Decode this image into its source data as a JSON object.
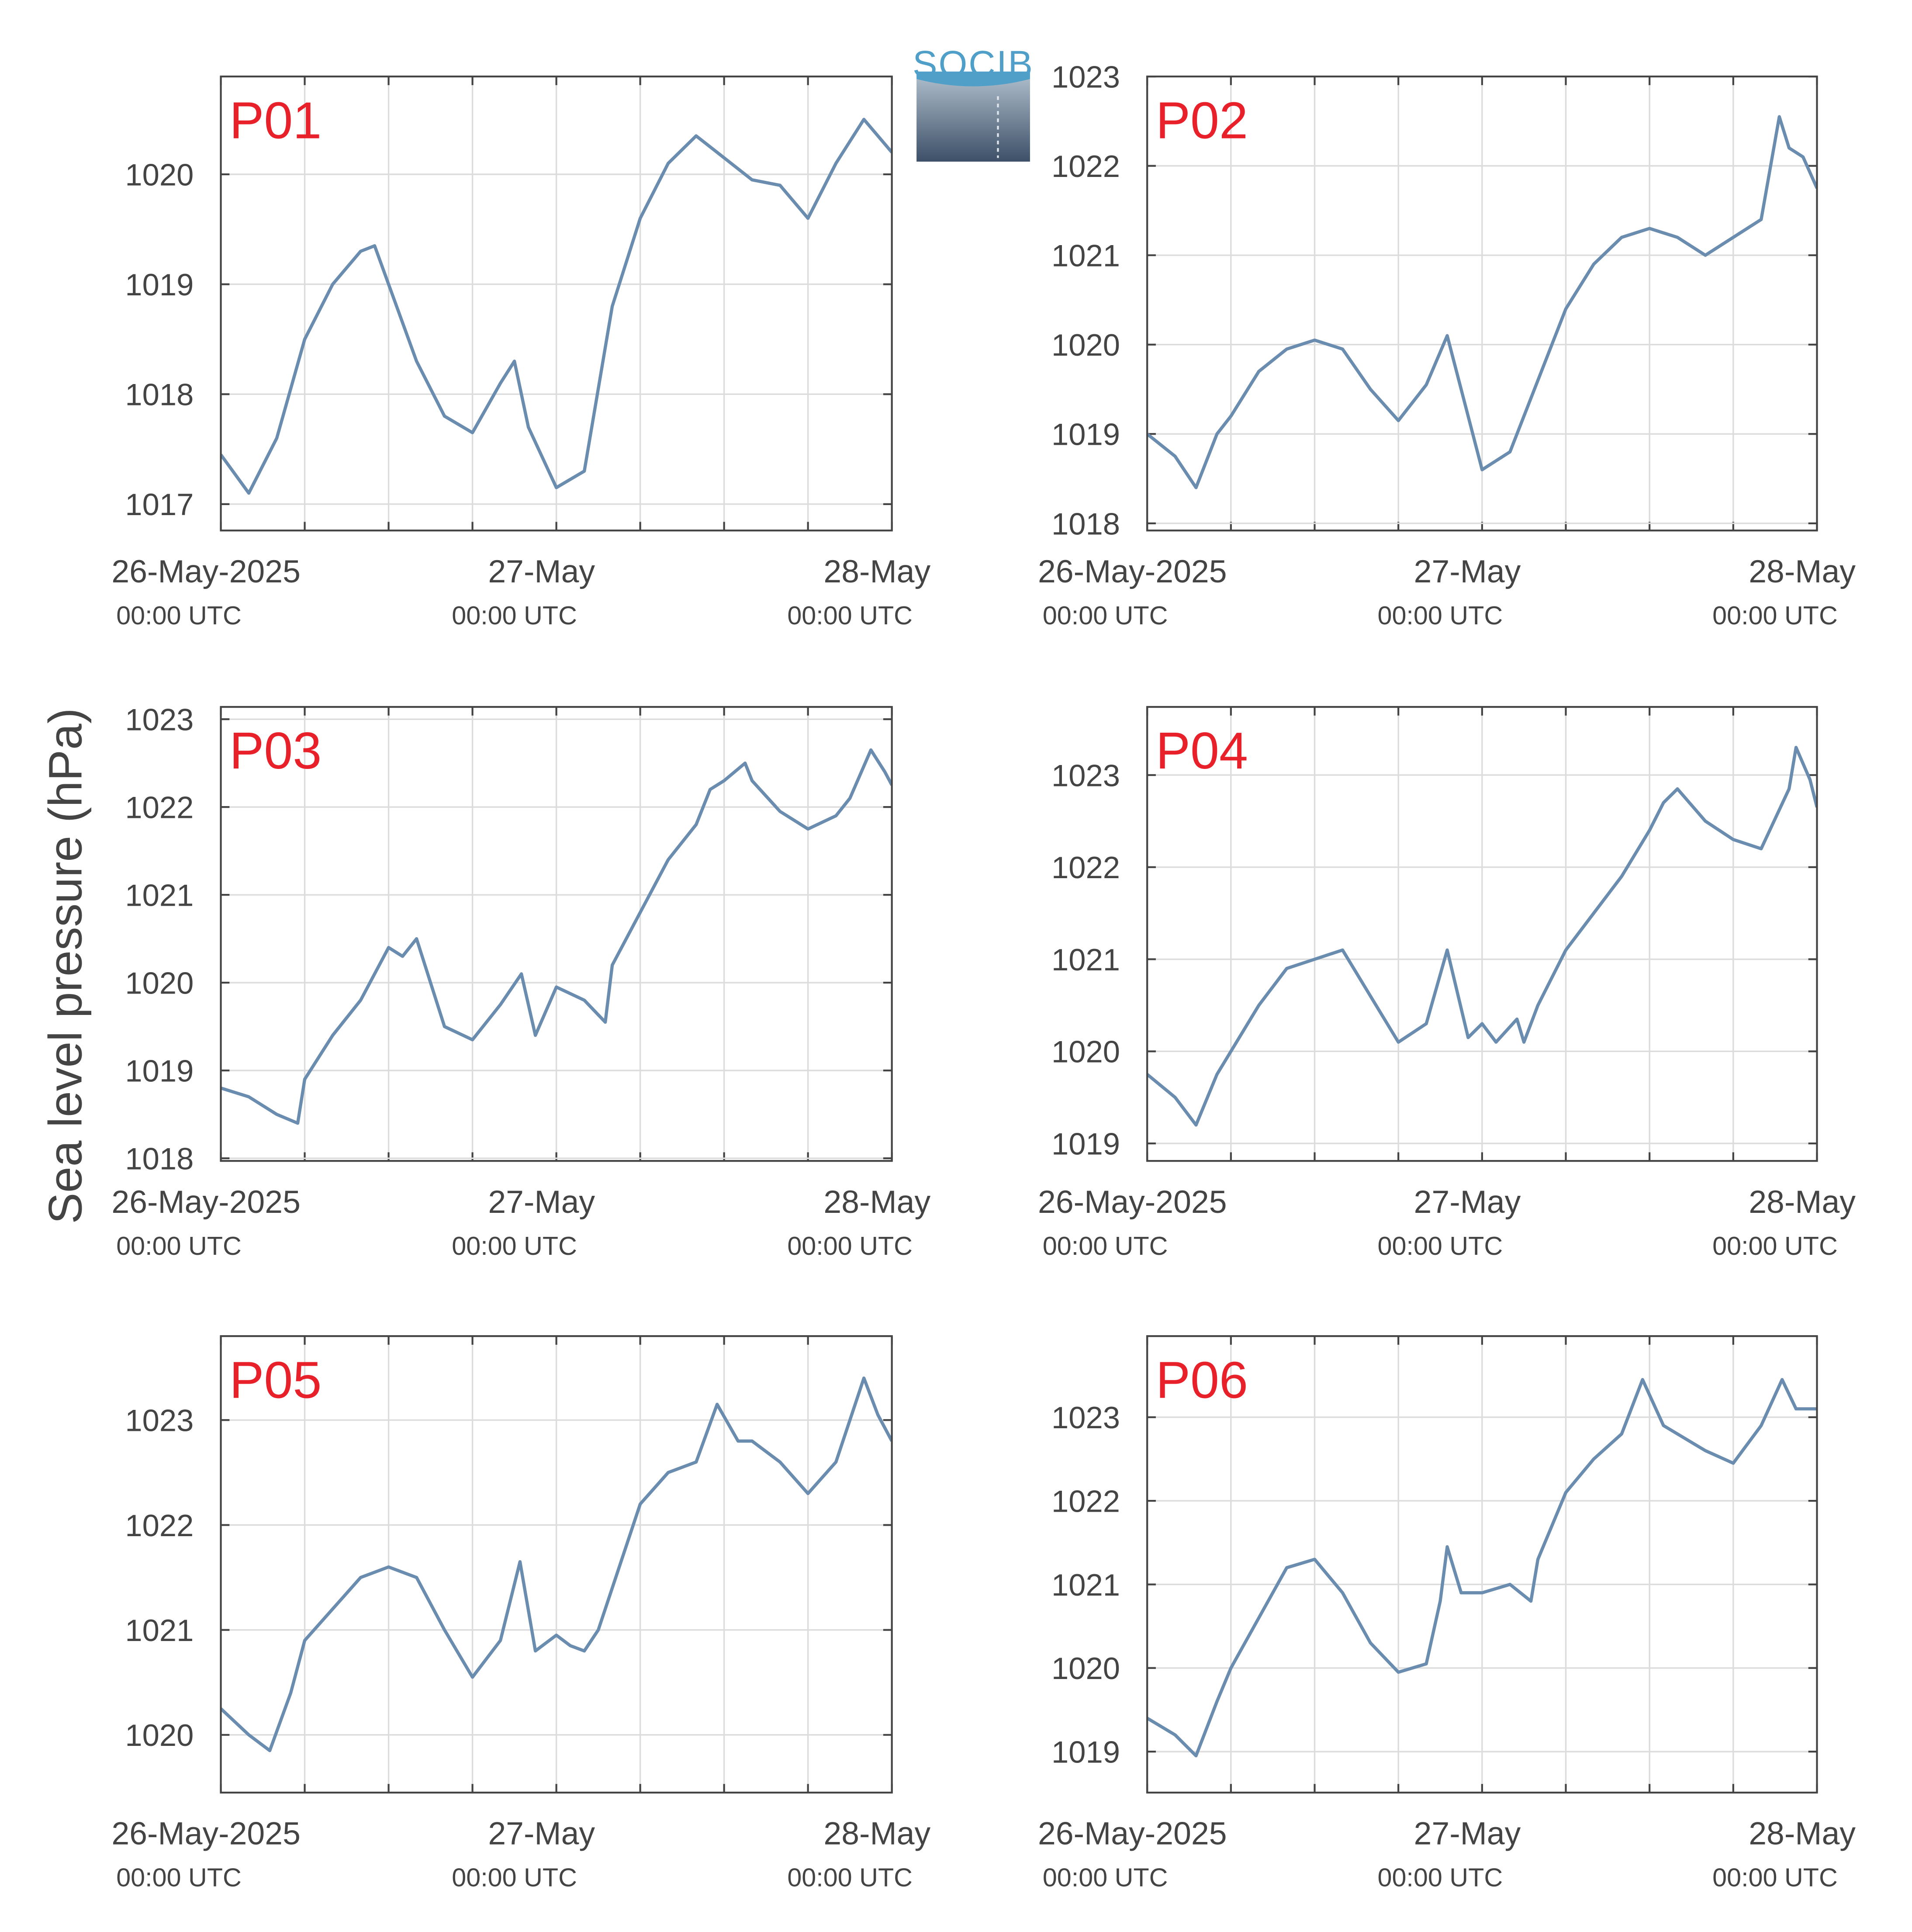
{
  "ylabel": "Sea level pressure (hPa)",
  "logo": "SOCIB",
  "chart_data": [
    {
      "type": "line",
      "title": "P01",
      "color": "#6a8caf",
      "xlim": [
        0,
        48
      ],
      "ylim": [
        1016.76,
        1020.89
      ],
      "yticks": [
        1017,
        1018,
        1019,
        1020
      ],
      "xticks": [
        {
          "value": 0,
          "label": "26-May-2025",
          "sublabel": "00:00 UTC"
        },
        {
          "value": 24,
          "label": "27-May",
          "sublabel": "00:00 UTC"
        },
        {
          "value": 48,
          "label": "28-May",
          "sublabel": "00:00 UTC"
        }
      ],
      "xminor": [
        6,
        12,
        18,
        30,
        36,
        42
      ],
      "x": [
        0,
        2,
        4,
        6,
        8,
        10,
        11,
        12,
        14,
        16,
        18,
        20,
        21,
        22,
        24,
        26,
        28,
        30,
        32,
        34,
        36,
        38,
        40,
        42,
        44,
        46,
        48
      ],
      "values": [
        1017.45,
        1017.1,
        1017.6,
        1018.5,
        1019.0,
        1019.3,
        1019.35,
        1019.0,
        1018.3,
        1017.8,
        1017.65,
        1018.1,
        1018.3,
        1017.7,
        1017.15,
        1017.3,
        1018.8,
        1019.6,
        1020.1,
        1020.35,
        1020.15,
        1019.95,
        1019.9,
        1019.6,
        1020.1,
        1020.5,
        1020.2
      ]
    },
    {
      "type": "line",
      "title": "P02",
      "color": "#6a8caf",
      "xlim": [
        0,
        48
      ],
      "ylim": [
        1017.92,
        1023
      ],
      "yticks": [
        1018,
        1019,
        1020,
        1021,
        1022,
        1023
      ],
      "xticks": [
        {
          "value": 0,
          "label": "26-May-2025",
          "sublabel": "00:00 UTC"
        },
        {
          "value": 24,
          "label": "27-May",
          "sublabel": "00:00 UTC"
        },
        {
          "value": 48,
          "label": "28-May",
          "sublabel": "00:00 UTC"
        }
      ],
      "xminor": [
        6,
        12,
        18,
        30,
        36,
        42
      ],
      "x": [
        0,
        2,
        3.5,
        5,
        6,
        8,
        10,
        12,
        14,
        16,
        18,
        20,
        21.5,
        22.5,
        24,
        26,
        28,
        30,
        32,
        34,
        36,
        38,
        40,
        42,
        44,
        45.3,
        46,
        47,
        48
      ],
      "values": [
        1019.0,
        1018.75,
        1018.4,
        1019.0,
        1019.2,
        1019.7,
        1019.95,
        1020.05,
        1019.95,
        1019.5,
        1019.15,
        1019.55,
        1020.1,
        1019.5,
        1018.6,
        1018.8,
        1019.6,
        1020.4,
        1020.9,
        1021.2,
        1021.3,
        1021.2,
        1021.0,
        1021.2,
        1021.4,
        1022.55,
        1022.2,
        1022.1,
        1021.75
      ]
    },
    {
      "type": "line",
      "title": "P03",
      "color": "#6a8caf",
      "xlim": [
        0,
        48
      ],
      "ylim": [
        1017.97,
        1023.14
      ],
      "yticks": [
        1018,
        1019,
        1020,
        1021,
        1022,
        1023
      ],
      "xticks": [
        {
          "value": 0,
          "label": "26-May-2025",
          "sublabel": "00:00 UTC"
        },
        {
          "value": 24,
          "label": "27-May",
          "sublabel": "00:00 UTC"
        },
        {
          "value": 48,
          "label": "28-May",
          "sublabel": "00:00 UTC"
        }
      ],
      "xminor": [
        6,
        12,
        18,
        30,
        36,
        42
      ],
      "x": [
        0,
        2,
        4,
        5.5,
        6,
        8,
        10,
        12,
        13,
        14,
        16,
        18,
        20,
        21.5,
        22.5,
        24,
        26,
        27.5,
        28,
        30,
        32,
        34,
        35,
        36,
        37.5,
        38,
        40,
        42,
        44,
        45,
        46.5,
        47.5,
        48
      ],
      "values": [
        1018.8,
        1018.7,
        1018.5,
        1018.4,
        1018.9,
        1019.4,
        1019.8,
        1020.4,
        1020.3,
        1020.5,
        1019.5,
        1019.35,
        1019.75,
        1020.1,
        1019.4,
        1019.95,
        1019.8,
        1019.55,
        1020.2,
        1020.8,
        1021.4,
        1021.8,
        1022.2,
        1022.3,
        1022.5,
        1022.3,
        1021.95,
        1021.75,
        1021.9,
        1022.1,
        1022.65,
        1022.4,
        1022.25
      ]
    },
    {
      "type": "line",
      "title": "P04",
      "color": "#6a8caf",
      "xlim": [
        0,
        48
      ],
      "ylim": [
        1018.81,
        1023.74
      ],
      "yticks": [
        1019,
        1020,
        1021,
        1022,
        1023
      ],
      "xticks": [
        {
          "value": 0,
          "label": "26-May-2025",
          "sublabel": "00:00 UTC"
        },
        {
          "value": 24,
          "label": "27-May",
          "sublabel": "00:00 UTC"
        },
        {
          "value": 48,
          "label": "28-May",
          "sublabel": "00:00 UTC"
        }
      ],
      "xminor": [
        6,
        12,
        18,
        30,
        36,
        42
      ],
      "x": [
        0,
        2,
        3.5,
        5,
        6,
        8,
        10,
        12,
        14,
        16,
        18,
        20,
        21.5,
        23,
        24,
        25,
        26.5,
        27,
        28,
        30,
        32,
        34,
        36,
        37,
        38,
        40,
        42,
        44,
        46,
        46.5,
        47.5,
        48
      ],
      "values": [
        1019.75,
        1019.5,
        1019.2,
        1019.75,
        1020.0,
        1020.5,
        1020.9,
        1021.0,
        1021.1,
        1020.6,
        1020.1,
        1020.3,
        1021.1,
        1020.15,
        1020.3,
        1020.1,
        1020.35,
        1020.1,
        1020.5,
        1021.1,
        1021.5,
        1021.9,
        1022.4,
        1022.7,
        1022.85,
        1022.5,
        1022.3,
        1022.2,
        1022.85,
        1023.3,
        1022.95,
        1022.65
      ]
    },
    {
      "type": "line",
      "title": "P05",
      "color": "#6a8caf",
      "xlim": [
        0,
        48
      ],
      "ylim": [
        1019.45,
        1023.8
      ],
      "yticks": [
        1020,
        1021,
        1022,
        1023
      ],
      "xticks": [
        {
          "value": 0,
          "label": "26-May-2025",
          "sublabel": "00:00 UTC"
        },
        {
          "value": 24,
          "label": "27-May",
          "sublabel": "00:00 UTC"
        },
        {
          "value": 48,
          "label": "28-May",
          "sublabel": "00:00 UTC"
        }
      ],
      "xminor": [
        6,
        12,
        18,
        30,
        36,
        42
      ],
      "x": [
        0,
        2,
        3.5,
        5,
        6,
        8,
        10,
        12,
        14,
        16,
        18,
        20,
        21.4,
        22.5,
        24,
        25,
        26,
        27,
        28,
        30,
        32,
        34,
        35.5,
        37,
        38,
        40,
        42,
        44,
        46,
        47,
        48
      ],
      "values": [
        1020.25,
        1020.0,
        1019.85,
        1020.4,
        1020.9,
        1021.2,
        1021.5,
        1021.6,
        1021.5,
        1021.0,
        1020.55,
        1020.9,
        1021.65,
        1020.8,
        1020.95,
        1020.85,
        1020.8,
        1021.0,
        1021.4,
        1022.2,
        1022.5,
        1022.6,
        1023.15,
        1022.8,
        1022.8,
        1022.6,
        1022.3,
        1022.6,
        1023.4,
        1023.05,
        1022.8
      ]
    },
    {
      "type": "line",
      "title": "P06",
      "color": "#6a8caf",
      "xlim": [
        0,
        48
      ],
      "ylim": [
        1018.51,
        1023.97
      ],
      "yticks": [
        1019,
        1020,
        1021,
        1022,
        1023
      ],
      "xticks": [
        {
          "value": 0,
          "label": "26-May-2025",
          "sublabel": "00:00 UTC"
        },
        {
          "value": 24,
          "label": "27-May",
          "sublabel": "00:00 UTC"
        },
        {
          "value": 48,
          "label": "28-May",
          "sublabel": "00:00 UTC"
        }
      ],
      "xminor": [
        6,
        12,
        18,
        30,
        36,
        42
      ],
      "x": [
        0,
        2,
        3.5,
        5,
        6,
        8,
        10,
        12,
        14,
        16,
        18,
        20,
        21,
        21.5,
        22.5,
        24,
        26,
        27.5,
        28,
        30,
        32,
        34,
        35.5,
        37,
        38,
        40,
        42,
        44,
        45.5,
        46.5,
        48
      ],
      "values": [
        1019.4,
        1019.2,
        1018.95,
        1019.6,
        1020.0,
        1020.6,
        1021.2,
        1021.3,
        1020.9,
        1020.3,
        1019.95,
        1020.05,
        1020.8,
        1021.45,
        1020.9,
        1020.9,
        1021.0,
        1020.8,
        1021.3,
        1022.1,
        1022.5,
        1022.8,
        1023.45,
        1022.9,
        1022.8,
        1022.6,
        1022.45,
        1022.9,
        1023.45,
        1023.1,
        1023.1
      ]
    }
  ]
}
